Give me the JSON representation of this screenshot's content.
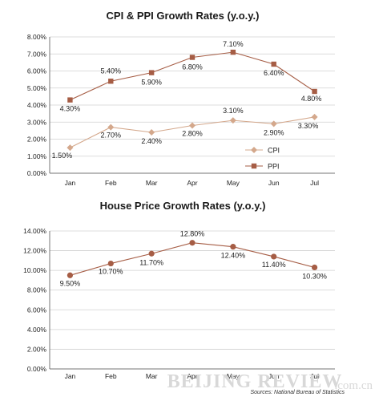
{
  "chart_data": [
    {
      "type": "line",
      "title": "CPI & PPI Growth Rates (y.o.y.)",
      "categories": [
        "Jan",
        "Feb",
        "Mar",
        "Apr",
        "May",
        "Jun",
        "Jul"
      ],
      "ylim": [
        0,
        8
      ],
      "yticks": [
        "0.00%",
        "1.00%",
        "2.00%",
        "3.00%",
        "4.00%",
        "5.00%",
        "6.00%",
        "7.00%",
        "8.00%"
      ],
      "legend": "bottom-right",
      "series": [
        {
          "name": "CPI",
          "marker": "diamond",
          "color": "#d4a88c",
          "values": [
            1.5,
            2.7,
            2.4,
            2.8,
            3.1,
            2.9,
            3.3
          ],
          "labels": [
            "1.50%",
            "2.70%",
            "2.40%",
            "2.80%",
            "3.10%",
            "2.90%",
            "3.30%"
          ]
        },
        {
          "name": "PPI",
          "marker": "square",
          "color": "#a65d45",
          "values": [
            4.3,
            5.4,
            5.9,
            6.8,
            7.1,
            6.4,
            4.8
          ],
          "labels": [
            "4.30%",
            "5.40%",
            "5.90%",
            "6.80%",
            "7.10%",
            "6.40%",
            "4.80%"
          ]
        }
      ]
    },
    {
      "type": "line",
      "title": "House Price Growth Rates (y.o.y.)",
      "categories": [
        "Jan",
        "Feb",
        "Mar",
        "Apr",
        "May",
        "Jun",
        "Jul"
      ],
      "ylim": [
        0,
        14
      ],
      "yticks": [
        "0.00%",
        "2.00%",
        "4.00%",
        "6.00%",
        "8.00%",
        "10.00%",
        "12.00%",
        "14.00%"
      ],
      "series": [
        {
          "marker": "circle",
          "color": "#a65d45",
          "values": [
            9.5,
            10.7,
            11.7,
            12.8,
            12.4,
            11.4,
            10.3
          ],
          "labels": [
            "9.50%",
            "10.70%",
            "11.70%",
            "12.80%",
            "12.40%",
            "11.40%",
            "10.30%"
          ]
        }
      ]
    }
  ],
  "source": "Sources: National Bureau of Statistics",
  "watermark": {
    "brand": "BEIJING REVIEW",
    "domain": ".com.cn"
  }
}
